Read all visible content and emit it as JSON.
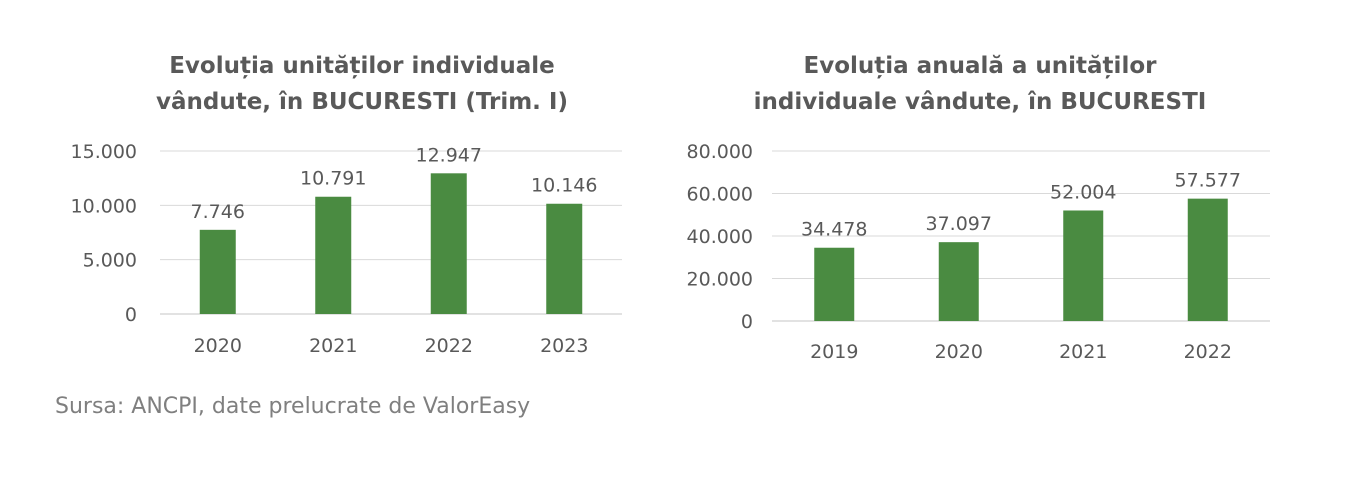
{
  "colors": {
    "bar": "#4a8b41",
    "grid": "#d9d9d9",
    "text": "#595959",
    "source_text": "#7f7f7f"
  },
  "chart_data": [
    {
      "type": "bar",
      "title_lines": [
        "Evoluția unităților individuale",
        "vândute,  în BUCURESTI (Trim. I)"
      ],
      "categories": [
        "2020",
        "2021",
        "2022",
        "2023"
      ],
      "values": [
        7746,
        10791,
        12947,
        10146
      ],
      "value_labels": [
        "7.746",
        "10.791",
        "12.947",
        "10.146"
      ],
      "ylim": [
        0,
        15000
      ],
      "yticks": [
        0,
        5000,
        10000,
        15000
      ],
      "ytick_labels": [
        "0",
        "5.000",
        "10.000",
        "15.000"
      ],
      "grid": true,
      "legend": "none"
    },
    {
      "type": "bar",
      "title_lines": [
        "Evoluția anuală a unităților",
        "individuale vândute, în BUCURESTI"
      ],
      "categories": [
        "2019",
        "2020",
        "2021",
        "2022"
      ],
      "values": [
        34478,
        37097,
        52004,
        57577
      ],
      "value_labels": [
        "34.478",
        "37.097",
        "52.004",
        "57.577"
      ],
      "ylim": [
        0,
        80000
      ],
      "yticks": [
        0,
        20000,
        40000,
        60000,
        80000
      ],
      "ytick_labels": [
        "0",
        "20.000",
        "40.000",
        "60.000",
        "80.000"
      ],
      "grid": true,
      "legend": "none"
    }
  ],
  "source_text": "Sursa: ANCPI, date prelucrate de ValorEasy"
}
